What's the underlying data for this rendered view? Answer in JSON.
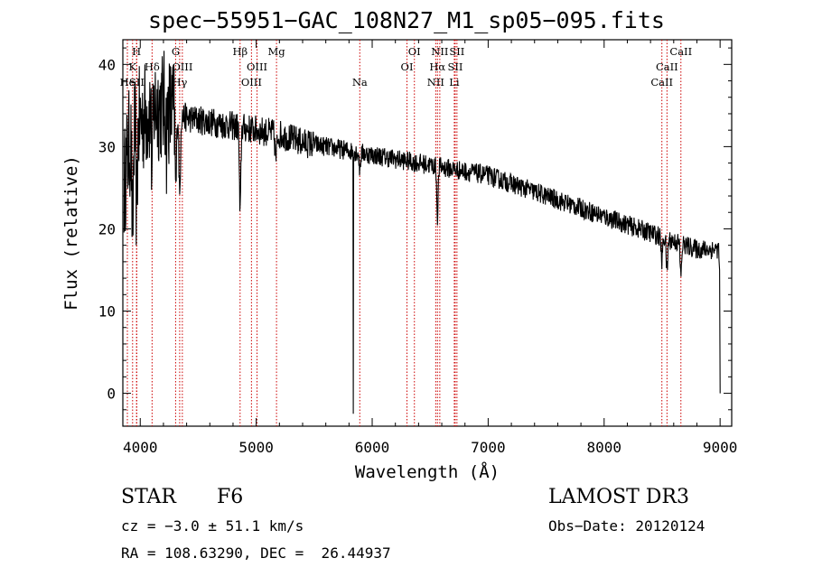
{
  "header": {
    "title": "spec−55951−GAC_108N27_M1_sp05−095.fits"
  },
  "info": {
    "object_class": "STAR",
    "subclass": "F6",
    "survey": "LAMOST DR3",
    "redshift_line": "cz = −3.0 ± 51.1 km/s",
    "obs_date_line": "Obs−Date: 20120124",
    "coords_line": "RA = 108.63290, DEC =  26.44937"
  },
  "chart_data": {
    "type": "line",
    "title": "spec−55951−GAC_108N27_M1_sp05−095.fits",
    "xlabel": "Wavelength (Å)",
    "ylabel": "Flux (relative)",
    "xlim": [
      3850,
      9100
    ],
    "ylim": [
      -4,
      43
    ],
    "xticks": [
      4000,
      5000,
      6000,
      7000,
      8000,
      9000
    ],
    "xtick_labels": [
      "4000",
      "5000",
      "6000",
      "7000",
      "8000",
      "9000"
    ],
    "yticks": [
      0,
      10,
      20,
      30,
      40
    ],
    "ytick_labels": [
      "0",
      "10",
      "20",
      "30",
      "40"
    ],
    "line_color": "#000000",
    "marker_color": "#cc0000",
    "continuum": {
      "x": [
        3850,
        3900,
        3950,
        4000,
        4100,
        4200,
        4300,
        4400,
        4600,
        4800,
        5000,
        5200,
        5400,
        5600,
        5800,
        6000,
        6200,
        6400,
        6600,
        6800,
        7000,
        7200,
        7400,
        7600,
        7800,
        8000,
        8200,
        8400,
        8600,
        8800,
        8950
      ],
      "y": [
        24,
        30,
        32,
        33,
        35,
        35,
        34,
        33.5,
        33,
        32.5,
        32,
        31.5,
        30.5,
        30,
        29.5,
        29,
        28.5,
        28,
        27.5,
        27,
        26.5,
        25.5,
        24.5,
        23.5,
        22.5,
        21.5,
        20.5,
        19.5,
        18.5,
        17.5,
        17.5
      ]
    },
    "absorption_features": [
      {
        "x": 3934,
        "depth": 12,
        "width": 6
      },
      {
        "x": 3969,
        "depth": 10,
        "width": 6
      },
      {
        "x": 4102,
        "depth": 8,
        "width": 6
      },
      {
        "x": 4227,
        "depth": 4,
        "width": 5
      },
      {
        "x": 4307,
        "depth": 9,
        "width": 6
      },
      {
        "x": 4340,
        "depth": 10,
        "width": 6
      },
      {
        "x": 4861,
        "depth": 11,
        "width": 6
      },
      {
        "x": 5170,
        "depth": 3,
        "width": 8
      },
      {
        "x": 5893,
        "depth": 2,
        "width": 6
      },
      {
        "x": 6563,
        "depth": 6,
        "width": 6
      },
      {
        "x": 8498,
        "depth": 3,
        "width": 6
      },
      {
        "x": 8542,
        "depth": 4,
        "width": 6
      },
      {
        "x": 8662,
        "depth": 4,
        "width": 6
      }
    ],
    "spikes": [
      {
        "x": 5838,
        "y": -2.5
      },
      {
        "x": 9000,
        "y": 0
      }
    ],
    "line_markers": [
      {
        "x": 3889,
        "row": 1,
        "label": "He"
      },
      {
        "x": 3934,
        "row": 2,
        "label": "K"
      },
      {
        "x": 3968,
        "row": 3,
        "label": "H"
      },
      {
        "x": 3970,
        "row": 1,
        "label": "SII"
      },
      {
        "x": 4102,
        "row": 2,
        "label": "Hδ"
      },
      {
        "x": 4305,
        "row": 3,
        "label": "G"
      },
      {
        "x": 4340,
        "row": 1,
        "label": "Hγ"
      },
      {
        "x": 4363,
        "row": 2,
        "label": "OIII"
      },
      {
        "x": 4861,
        "row": 3,
        "label": "Hβ"
      },
      {
        "x": 4959,
        "row": 1,
        "label": "OIII"
      },
      {
        "x": 5007,
        "row": 2,
        "label": "OIII"
      },
      {
        "x": 5175,
        "row": 3,
        "label": "Mg"
      },
      {
        "x": 5893,
        "row": 1,
        "label": "Na"
      },
      {
        "x": 6300,
        "row": 2,
        "label": "OI"
      },
      {
        "x": 6364,
        "row": 3,
        "label": "OI"
      },
      {
        "x": 6548,
        "row": 1,
        "label": "NII"
      },
      {
        "x": 6563,
        "row": 2,
        "label": "Hα"
      },
      {
        "x": 6583,
        "row": 3,
        "label": "NII"
      },
      {
        "x": 6708,
        "row": 1,
        "label": "Li"
      },
      {
        "x": 6716,
        "row": 2,
        "label": "SII"
      },
      {
        "x": 6731,
        "row": 3,
        "label": "SII"
      },
      {
        "x": 8498,
        "row": 1,
        "label": "CaII"
      },
      {
        "x": 8542,
        "row": 2,
        "label": "CaII"
      },
      {
        "x": 8662,
        "row": 3,
        "label": "CaII"
      }
    ]
  }
}
